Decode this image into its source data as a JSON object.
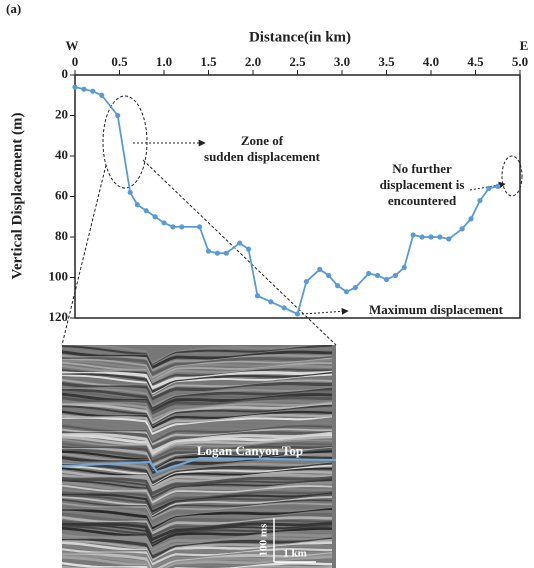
{
  "chart_data": {
    "type": "line",
    "panel_label": "(a)",
    "x_title": "Distance(in km)",
    "y_title": "Vertical Displacement (m)",
    "west_label": "W",
    "east_label": "E",
    "x": [
      0,
      0.1,
      0.2,
      0.3,
      0.48,
      0.62,
      0.7,
      0.8,
      0.9,
      1.0,
      1.1,
      1.2,
      1.4,
      1.5,
      1.6,
      1.7,
      1.85,
      1.95,
      2.05,
      2.2,
      2.35,
      2.5,
      2.6,
      2.75,
      2.85,
      2.95,
      3.05,
      3.15,
      3.3,
      3.4,
      3.5,
      3.6,
      3.7,
      3.8,
      3.9,
      4.0,
      4.1,
      4.2,
      4.35,
      4.45,
      4.55,
      4.65,
      4.75
    ],
    "values": [
      6,
      7,
      8,
      10,
      20,
      58,
      64,
      67,
      70,
      73,
      75,
      75,
      75,
      87,
      88,
      88,
      83,
      86,
      109,
      112,
      115,
      118,
      102,
      96,
      99,
      104,
      107,
      105,
      98,
      99,
      101,
      99,
      95,
      79,
      80,
      80,
      80,
      81,
      76,
      71,
      62,
      56,
      55
    ],
    "color": "#5b9bd5",
    "xlim": [
      0,
      5
    ],
    "xticks": [
      0,
      0.5,
      {
        "value": 1,
        "label": "1.0"
      },
      1.5,
      {
        "value": 2,
        "label": "2.0"
      },
      2.5,
      {
        "value": 3,
        "label": "3.0"
      },
      3.5,
      {
        "value": 4,
        "label": "4.0"
      },
      4.5,
      {
        "value": 5,
        "label": "5.0"
      }
    ],
    "ylim": [
      120,
      0
    ],
    "yticks": [
      0,
      20,
      40,
      60,
      80,
      100,
      120
    ],
    "annotations": [
      {
        "lines": [
          "Zone of",
          "sudden displacement"
        ]
      },
      {
        "lines": [
          "No further",
          "displacement is",
          "encountered"
        ]
      },
      {
        "lines": [
          "Maximum displacement"
        ]
      }
    ],
    "inset": {
      "horizon": "Logan Canyon Top",
      "time_scale": "100 ms",
      "distance_scale": "1 km"
    }
  }
}
